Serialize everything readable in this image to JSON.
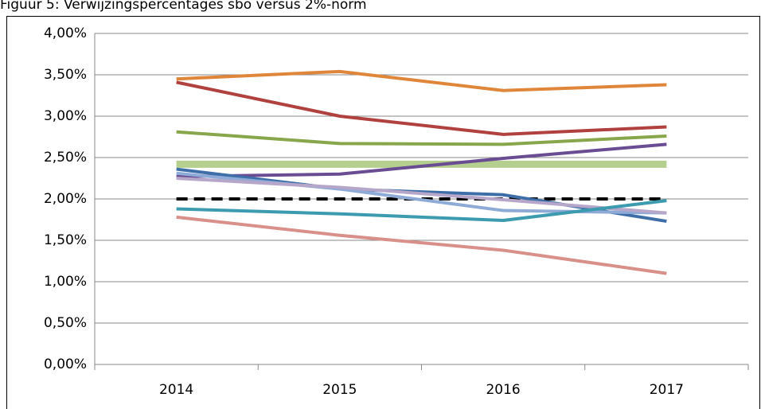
{
  "chart_data": {
    "type": "line",
    "title": "Figuur 5: Verwijzingspercentages sbo versus 2%-norm",
    "categories": [
      "2014",
      "2015",
      "2016",
      "2017"
    ],
    "ylim": [
      0,
      4
    ],
    "yticks": [
      {
        "value": 0,
        "label": "0,00%"
      },
      {
        "value": 0.5,
        "label": "0,50%"
      },
      {
        "value": 1,
        "label": "1,00%"
      },
      {
        "value": 1.5,
        "label": "1,50%"
      },
      {
        "value": 2,
        "label": "2,00%"
      },
      {
        "value": 2.5,
        "label": "2,50%"
      },
      {
        "value": 3,
        "label": "3,00%"
      },
      {
        "value": 3.5,
        "label": "3,50%"
      },
      {
        "value": 4,
        "label": "4,00%"
      }
    ],
    "grid": true,
    "series": [
      {
        "color": "#b5cf8e",
        "style": "thick",
        "values": [
          2.42,
          2.42,
          2.42,
          2.42
        ]
      },
      {
        "color": "#000000",
        "style": "dashed",
        "values": [
          2.0,
          2.0,
          2.0,
          2.0
        ]
      },
      {
        "color": "#e0863a",
        "values": [
          3.45,
          3.54,
          3.31,
          3.38
        ]
      },
      {
        "color": "#b0413e",
        "values": [
          3.41,
          3.0,
          2.78,
          2.87
        ]
      },
      {
        "color": "#88a64b",
        "values": [
          2.81,
          2.67,
          2.66,
          2.76
        ]
      },
      {
        "color": "#6a4c93",
        "values": [
          2.27,
          2.3,
          2.49,
          2.66
        ]
      },
      {
        "color": "#3e6ea8",
        "values": [
          2.36,
          2.12,
          2.05,
          1.73
        ]
      },
      {
        "color": "#8eaad6",
        "values": [
          2.31,
          2.12,
          1.86,
          1.83
        ]
      },
      {
        "color": "#b6a6c9",
        "values": [
          2.25,
          2.14,
          1.99,
          1.83
        ]
      },
      {
        "color": "#3d9bb0",
        "values": [
          1.88,
          1.82,
          1.74,
          1.98
        ]
      },
      {
        "color": "#d98f8a",
        "values": [
          1.78,
          1.56,
          1.38,
          1.1
        ]
      }
    ]
  }
}
